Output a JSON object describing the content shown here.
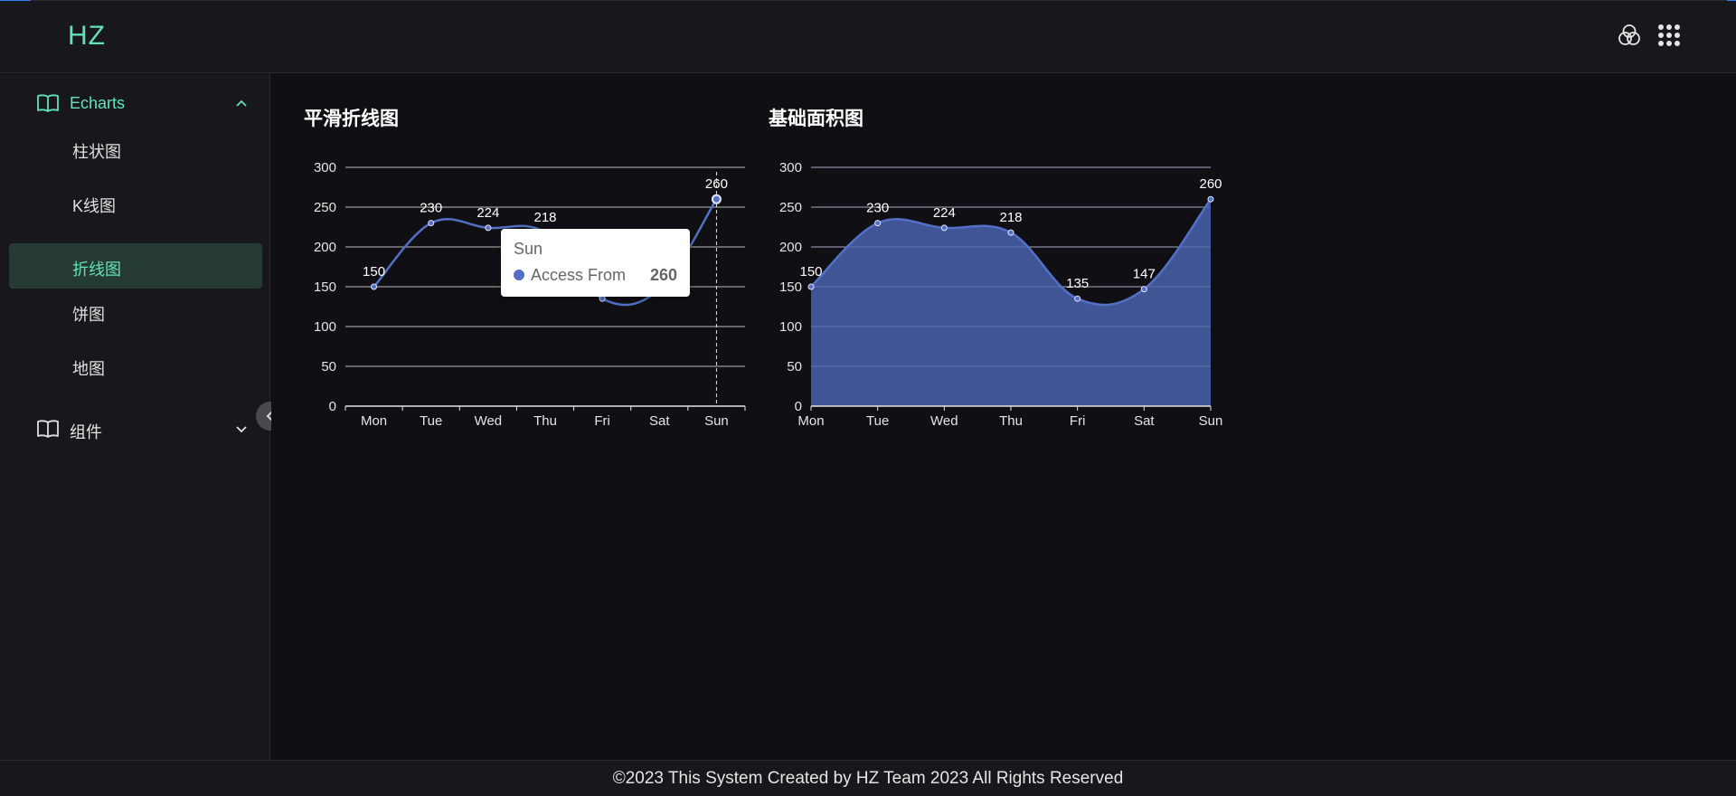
{
  "app": {
    "logo": "HZ"
  },
  "header": {
    "theme_icon": "color-circles-icon",
    "apps_icon": "apps-grid-icon"
  },
  "sidebar": {
    "groups": [
      {
        "label": "Echarts",
        "icon": "book-icon",
        "expanded": true,
        "items": [
          {
            "label": "柱状图",
            "active": false
          },
          {
            "label": "K线图",
            "active": false
          },
          {
            "label": "折线图",
            "active": true
          },
          {
            "label": "饼图",
            "active": false
          },
          {
            "label": "地图",
            "active": false
          }
        ]
      },
      {
        "label": "组件",
        "icon": "book-icon",
        "expanded": false,
        "items": []
      }
    ],
    "accent": "#63e2b7"
  },
  "charts": [
    {
      "title": "平滑折线图"
    },
    {
      "title": "基础面积图"
    }
  ],
  "chart_data": [
    {
      "type": "line",
      "title": "平滑折线图",
      "smooth": true,
      "categories": [
        "Mon",
        "Tue",
        "Wed",
        "Thu",
        "Fri",
        "Sat",
        "Sun"
      ],
      "series": [
        {
          "values": [
            150,
            230,
            224,
            218,
            135,
            147,
            260
          ]
        }
      ],
      "ylim": [
        0,
        300
      ],
      "yticks": [
        0,
        50,
        100,
        150,
        200,
        250,
        300
      ],
      "data_labels": [
        "150",
        "230",
        "224",
        "218",
        "260"
      ],
      "grid": true,
      "color": "#5470c6",
      "hover_index": 6
    },
    {
      "type": "area",
      "title": "基础面积图",
      "smooth": true,
      "categories": [
        "Mon",
        "Tue",
        "Wed",
        "Thu",
        "Fri",
        "Sat",
        "Sun"
      ],
      "series": [
        {
          "values": [
            150,
            230,
            224,
            218,
            135,
            147,
            260
          ]
        }
      ],
      "ylim": [
        0,
        300
      ],
      "yticks": [
        0,
        50,
        100,
        150,
        200,
        250,
        300
      ],
      "data_labels": [
        "150",
        "230",
        "224",
        "218",
        "135",
        "147",
        "260"
      ],
      "grid": true,
      "color": "#5470c6",
      "fill": "#3f5595"
    }
  ],
  "tooltip": {
    "x_label": "Sun",
    "series_name": "Access From",
    "value": "260"
  },
  "footer": {
    "text": "©2023 This System Created by HZ Team 2023 All Rights Reserved"
  }
}
